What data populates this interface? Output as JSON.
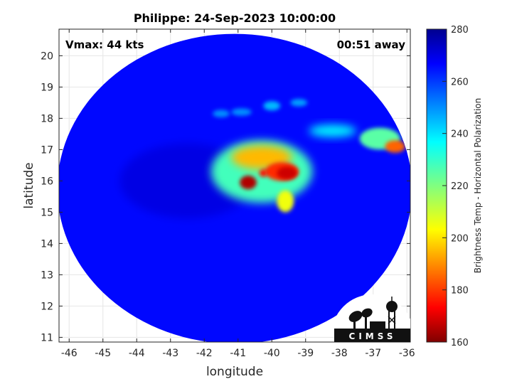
{
  "chart_data": {
    "type": "heatmap",
    "title": "Philippe: 24-Sep-2023 10:00:00",
    "xlabel": "longitude",
    "ylabel": "latitude",
    "xlim": [
      -46.3,
      -35.9
    ],
    "ylim": [
      10.85,
      20.85
    ],
    "xticks": [
      -46,
      -45,
      -44,
      -43,
      -42,
      -41,
      -40,
      -39,
      -38,
      -37,
      -36
    ],
    "yticks": [
      11,
      12,
      13,
      14,
      15,
      16,
      17,
      18,
      19,
      20
    ],
    "grid": true,
    "annotations": {
      "vmax": "Vmax: 44 kts",
      "time_offset": "00:51 away"
    },
    "colorbar": {
      "label": "Brightness Temp - Horizontal Polarization",
      "min": 160,
      "max": 280,
      "ticks": [
        160,
        180,
        200,
        220,
        240,
        260,
        280
      ],
      "colormap": "jet"
    },
    "swath": {
      "center": [
        -41.1,
        15.75
      ],
      "radius_lon": 5.25,
      "radius_lat": 4.95,
      "background_value": 266
    },
    "features": [
      {
        "name": "eye-region-dark",
        "lon": -42.5,
        "lat": 16.0,
        "rlon": 2.0,
        "rlat": 1.2,
        "value": 270
      },
      {
        "name": "cloud-shield",
        "lon": -40.3,
        "lat": 16.3,
        "rlon": 1.5,
        "rlat": 1.0,
        "value": 228
      },
      {
        "name": "convection-1",
        "lon": -40.3,
        "lat": 16.75,
        "rlon": 0.9,
        "rlat": 0.38,
        "value": 195
      },
      {
        "name": "convection-2",
        "lon": -39.7,
        "lat": 16.3,
        "rlon": 0.5,
        "rlat": 0.3,
        "value": 178
      },
      {
        "name": "convection-3",
        "lon": -40.7,
        "lat": 15.95,
        "rlon": 0.25,
        "rlat": 0.22,
        "value": 165
      },
      {
        "name": "convection-4",
        "lon": -39.55,
        "lat": 16.25,
        "rlon": 0.3,
        "rlat": 0.2,
        "value": 168
      },
      {
        "name": "convection-5",
        "lon": -40.25,
        "lat": 16.25,
        "rlon": 0.12,
        "rlat": 0.12,
        "value": 175
      },
      {
        "name": "rainband-southwest",
        "lon": -39.6,
        "lat": 15.35,
        "rlon": 0.25,
        "rlat": 0.35,
        "value": 205
      },
      {
        "name": "rainband-northeast-1",
        "lon": -38.2,
        "lat": 17.6,
        "rlon": 0.7,
        "rlat": 0.2,
        "value": 238
      },
      {
        "name": "rainband-northeast-2",
        "lon": -36.8,
        "lat": 17.35,
        "rlon": 0.6,
        "rlat": 0.35,
        "value": 225
      },
      {
        "name": "rainband-northeast-core",
        "lon": -36.35,
        "lat": 17.1,
        "rlon": 0.3,
        "rlat": 0.2,
        "value": 185
      },
      {
        "name": "cell-north-1",
        "lon": -40.0,
        "lat": 18.4,
        "rlon": 0.25,
        "rlat": 0.15,
        "value": 245
      },
      {
        "name": "cell-north-2",
        "lon": -40.9,
        "lat": 18.2,
        "rlon": 0.3,
        "rlat": 0.12,
        "value": 250
      },
      {
        "name": "cell-north-3",
        "lon": -41.5,
        "lat": 18.15,
        "rlon": 0.25,
        "rlat": 0.12,
        "value": 250
      },
      {
        "name": "cell-north-4",
        "lon": -39.2,
        "lat": 18.5,
        "rlon": 0.25,
        "rlat": 0.12,
        "value": 248
      }
    ]
  },
  "logo": {
    "name": "CIMSS",
    "text": "CIMSS"
  }
}
